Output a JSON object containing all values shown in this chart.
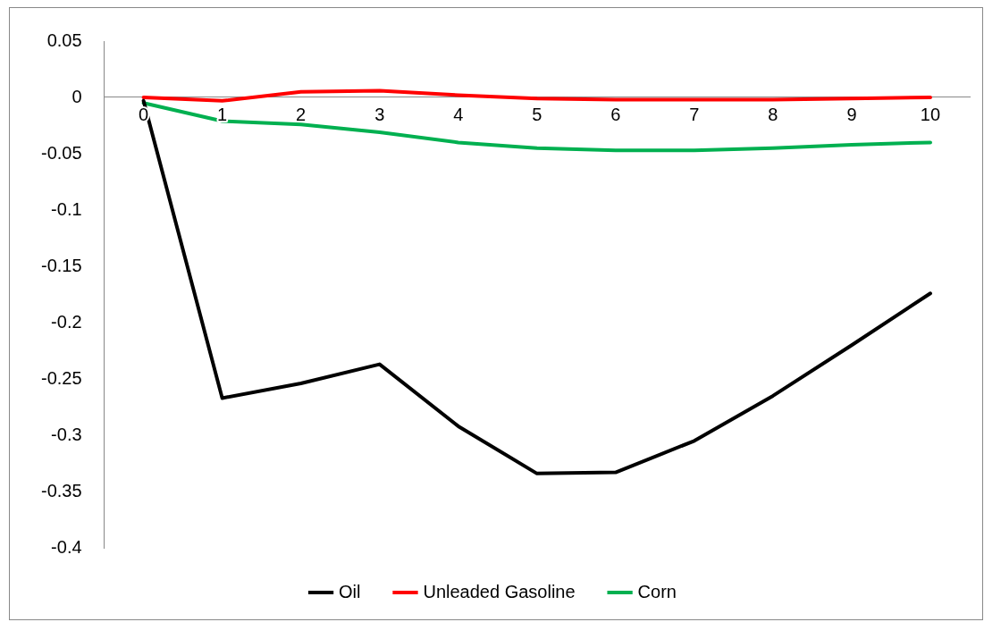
{
  "chart_data": {
    "type": "line",
    "categories": [
      "0",
      "1",
      "2",
      "3",
      "4",
      "5",
      "6",
      "7",
      "8",
      "9",
      "10"
    ],
    "series": [
      {
        "name": "Oil",
        "color": "#000000",
        "values": [
          -0.003,
          -0.267,
          -0.254,
          -0.237,
          -0.292,
          -0.334,
          -0.333,
          -0.305,
          -0.265,
          -0.22,
          -0.174
        ]
      },
      {
        "name": "Unleaded Gasoline",
        "color": "#ff0000",
        "values": [
          0,
          -0.003,
          0.005,
          0.006,
          0.002,
          -0.001,
          -0.002,
          -0.002,
          -0.002,
          -0.001,
          0
        ]
      },
      {
        "name": "Corn",
        "color": "#00b050",
        "values": [
          -0.005,
          -0.021,
          -0.024,
          -0.031,
          -0.04,
          -0.045,
          -0.047,
          -0.047,
          -0.045,
          -0.042,
          -0.04
        ]
      }
    ],
    "ylim": [
      -0.4,
      0.05
    ],
    "yticks": [
      -0.4,
      -0.35,
      -0.3,
      -0.25,
      -0.2,
      -0.15,
      -0.1,
      -0.05,
      0,
      0.05
    ],
    "grid": false,
    "legend": "bottom"
  }
}
